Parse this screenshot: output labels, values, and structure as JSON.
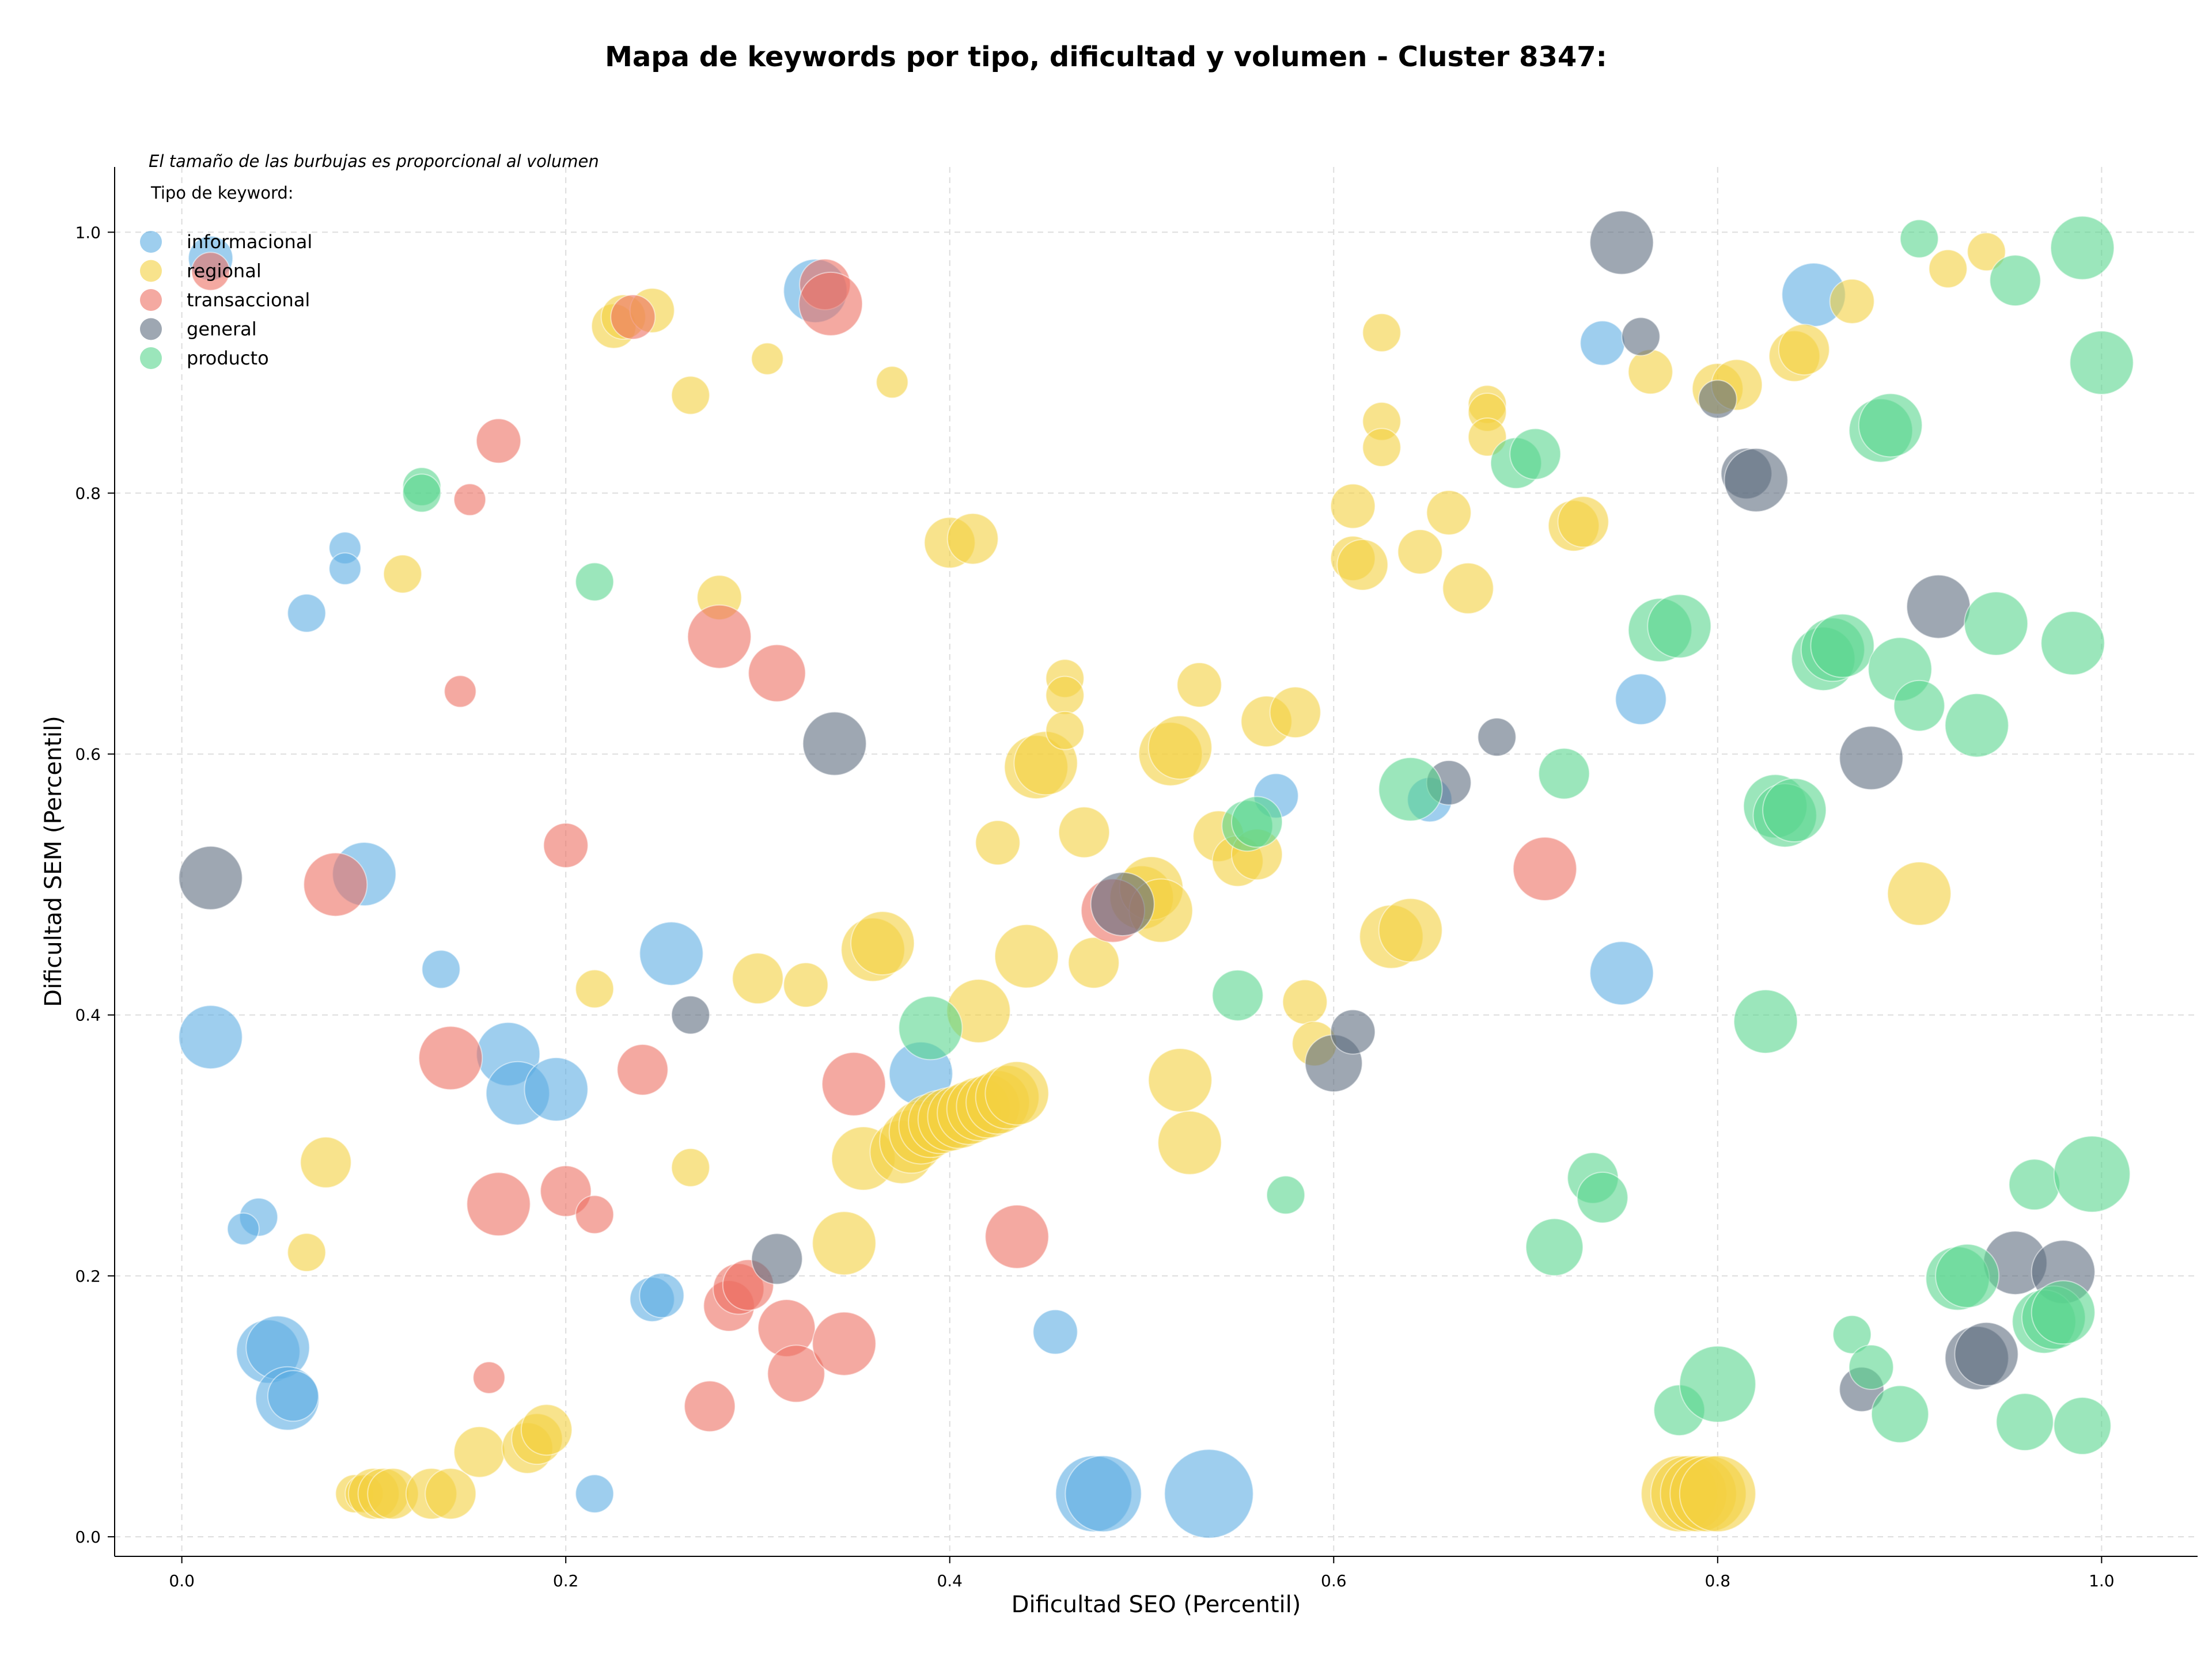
{
  "chart_data": {
    "type": "scatter",
    "title": "Mapa de keywords por tipo, dificultad y volumen - Cluster 8347:",
    "xlabel": "Dificultad SEO (Percentil)",
    "ylabel": "Dificultad SEM (Percentil)",
    "xlim": [
      -0.035,
      1.05
    ],
    "ylim": [
      -0.015,
      1.05
    ],
    "xticks": [
      "0.0",
      "0.2",
      "0.4",
      "0.6",
      "0.8",
      "1.0"
    ],
    "yticks": [
      "0.0",
      "0.2",
      "0.4",
      "0.6",
      "0.8",
      "1.0"
    ],
    "xtick_values": [
      0,
      0.2,
      0.4,
      0.6,
      0.8,
      1.0
    ],
    "ytick_values": [
      0,
      0.2,
      0.4,
      0.6,
      0.8,
      1.0
    ],
    "grid": true,
    "annotation": "El tamaño de las burbujas es proporcional al volumen",
    "legend_title": "Tipo de keyword:",
    "legend_position": "top-left",
    "series": [
      {
        "name": "informacional",
        "color": "#5dade2",
        "points": [
          [
            0.015,
            0.383,
            3
          ],
          [
            0.095,
            0.508,
            3
          ],
          [
            0.135,
            0.435,
            1
          ],
          [
            0.17,
            0.37,
            3
          ],
          [
            0.175,
            0.34,
            3
          ],
          [
            0.195,
            0.343,
            3
          ],
          [
            0.255,
            0.447,
            3
          ],
          [
            0.04,
            0.245,
            1
          ],
          [
            0.032,
            0.236,
            0.5
          ],
          [
            0.045,
            0.142,
            3
          ],
          [
            0.05,
            0.145,
            3
          ],
          [
            0.055,
            0.106,
            3
          ],
          [
            0.058,
            0.108,
            2
          ],
          [
            0.085,
            0.758,
            0.5
          ],
          [
            0.085,
            0.742,
            0.5
          ],
          [
            0.065,
            0.708,
            1
          ],
          [
            0.015,
            0.98,
            1.5
          ],
          [
            0.245,
            0.182,
            1.5
          ],
          [
            0.25,
            0.185,
            1.5
          ],
          [
            0.215,
            0.033,
            1
          ],
          [
            0.33,
            0.955,
            3
          ],
          [
            0.385,
            0.355,
            3
          ],
          [
            0.455,
            0.157,
            1.5
          ],
          [
            0.475,
            0.033,
            4
          ],
          [
            0.48,
            0.033,
            4
          ],
          [
            0.535,
            0.033,
            5
          ],
          [
            0.57,
            0.568,
            1.5
          ],
          [
            0.65,
            0.565,
            1.5
          ],
          [
            0.74,
            0.915,
            1.5
          ],
          [
            0.75,
            0.432,
            3
          ],
          [
            0.76,
            0.642,
            2
          ],
          [
            0.85,
            0.952,
            3
          ]
        ]
      },
      {
        "name": "regional",
        "color": "#f4d03f",
        "points": [
          [
            0.075,
            0.287,
            2
          ],
          [
            0.065,
            0.218,
            1
          ],
          [
            0.115,
            0.738,
            1
          ],
          [
            0.09,
            0.033,
            1
          ],
          [
            0.095,
            0.033,
            1
          ],
          [
            0.1,
            0.033,
            2
          ],
          [
            0.105,
            0.033,
            2
          ],
          [
            0.11,
            0.033,
            2
          ],
          [
            0.13,
            0.033,
            2
          ],
          [
            0.14,
            0.033,
            2
          ],
          [
            0.155,
            0.065,
            2
          ],
          [
            0.18,
            0.068,
            2
          ],
          [
            0.185,
            0.075,
            2
          ],
          [
            0.19,
            0.082,
            2
          ],
          [
            0.215,
            0.42,
            1
          ],
          [
            0.225,
            0.928,
            1.5
          ],
          [
            0.23,
            0.935,
            1.5
          ],
          [
            0.245,
            0.94,
            1.5
          ],
          [
            0.265,
            0.875,
            1
          ],
          [
            0.265,
            0.283,
            1
          ],
          [
            0.28,
            0.72,
            1.5
          ],
          [
            0.3,
            0.428,
            2
          ],
          [
            0.305,
            0.903,
            0.5
          ],
          [
            0.325,
            0.423,
            1.5
          ],
          [
            0.345,
            0.225,
            3
          ],
          [
            0.355,
            0.29,
            3
          ],
          [
            0.36,
            0.45,
            3
          ],
          [
            0.365,
            0.455,
            3
          ],
          [
            0.37,
            0.885,
            0.5
          ],
          [
            0.375,
            0.295,
            3
          ],
          [
            0.38,
            0.303,
            3
          ],
          [
            0.385,
            0.31,
            3
          ],
          [
            0.39,
            0.315,
            3
          ],
          [
            0.395,
            0.318,
            3
          ],
          [
            0.4,
            0.32,
            3
          ],
          [
            0.405,
            0.322,
            3
          ],
          [
            0.41,
            0.325,
            3
          ],
          [
            0.415,
            0.328,
            3
          ],
          [
            0.42,
            0.33,
            3
          ],
          [
            0.425,
            0.333,
            3
          ],
          [
            0.43,
            0.337,
            3
          ],
          [
            0.435,
            0.34,
            3
          ],
          [
            0.4,
            0.762,
            2
          ],
          [
            0.412,
            0.765,
            2
          ],
          [
            0.415,
            0.403,
            3
          ],
          [
            0.425,
            0.532,
            1.5
          ],
          [
            0.44,
            0.445,
            3
          ],
          [
            0.445,
            0.59,
            3
          ],
          [
            0.45,
            0.593,
            3
          ],
          [
            0.46,
            0.658,
            1
          ],
          [
            0.46,
            0.645,
            1
          ],
          [
            0.46,
            0.618,
            1
          ],
          [
            0.47,
            0.54,
            2
          ],
          [
            0.475,
            0.44,
            2
          ],
          [
            0.5,
            0.49,
            3
          ],
          [
            0.505,
            0.497,
            3
          ],
          [
            0.51,
            0.48,
            3
          ],
          [
            0.515,
            0.6,
            3
          ],
          [
            0.52,
            0.605,
            3
          ],
          [
            0.52,
            0.35,
            3
          ],
          [
            0.525,
            0.302,
            3
          ],
          [
            0.53,
            0.653,
            1.5
          ],
          [
            0.54,
            0.537,
            2
          ],
          [
            0.55,
            0.518,
            2
          ],
          [
            0.56,
            0.523,
            2
          ],
          [
            0.565,
            0.625,
            2
          ],
          [
            0.58,
            0.632,
            2
          ],
          [
            0.585,
            0.41,
            1.5
          ],
          [
            0.59,
            0.378,
            1.5
          ],
          [
            0.61,
            0.79,
            1.5
          ],
          [
            0.61,
            0.75,
            1.5
          ],
          [
            0.615,
            0.745,
            2
          ],
          [
            0.625,
            0.923,
            1
          ],
          [
            0.625,
            0.855,
            1
          ],
          [
            0.625,
            0.835,
            1
          ],
          [
            0.63,
            0.46,
            3
          ],
          [
            0.64,
            0.465,
            3
          ],
          [
            0.645,
            0.755,
            1.5
          ],
          [
            0.66,
            0.785,
            1.5
          ],
          [
            0.67,
            0.727,
            2
          ],
          [
            0.68,
            0.868,
            1
          ],
          [
            0.68,
            0.862,
            1
          ],
          [
            0.68,
            0.843,
            1
          ],
          [
            0.725,
            0.775,
            2
          ],
          [
            0.73,
            0.778,
            2
          ],
          [
            0.765,
            0.893,
            1.5
          ],
          [
            0.8,
            0.88,
            2
          ],
          [
            0.81,
            0.883,
            2
          ],
          [
            0.84,
            0.905,
            2
          ],
          [
            0.845,
            0.91,
            2
          ],
          [
            0.87,
            0.947,
            1.5
          ],
          [
            0.78,
            0.033,
            4
          ],
          [
            0.785,
            0.033,
            4
          ],
          [
            0.79,
            0.033,
            4
          ],
          [
            0.795,
            0.033,
            4
          ],
          [
            0.8,
            0.033,
            4
          ],
          [
            0.905,
            0.493,
            3
          ],
          [
            0.92,
            0.972,
            1
          ],
          [
            0.94,
            0.985,
            1
          ]
        ]
      },
      {
        "name": "transaccional",
        "color": "#ec7063",
        "points": [
          [
            0.015,
            0.97,
            1
          ],
          [
            0.08,
            0.5,
            3
          ],
          [
            0.14,
            0.367,
            3
          ],
          [
            0.15,
            0.795,
            0.5
          ],
          [
            0.145,
            0.648,
            0.5
          ],
          [
            0.165,
            0.84,
            1.5
          ],
          [
            0.165,
            0.255,
            3
          ],
          [
            0.16,
            0.122,
            0.5
          ],
          [
            0.2,
            0.53,
            1.5
          ],
          [
            0.2,
            0.265,
            2
          ],
          [
            0.215,
            0.247,
            1
          ],
          [
            0.235,
            0.935,
            1.5
          ],
          [
            0.24,
            0.358,
            2
          ],
          [
            0.275,
            0.1,
            2
          ],
          [
            0.28,
            0.69,
            3
          ],
          [
            0.285,
            0.177,
            2
          ],
          [
            0.29,
            0.19,
            2
          ],
          [
            0.295,
            0.193,
            2
          ],
          [
            0.31,
            0.662,
            2.5
          ],
          [
            0.315,
            0.16,
            2.5
          ],
          [
            0.32,
            0.125,
            2.5
          ],
          [
            0.335,
            0.96,
            2
          ],
          [
            0.338,
            0.945,
            3
          ],
          [
            0.345,
            0.148,
            3
          ],
          [
            0.35,
            0.347,
            3
          ],
          [
            0.435,
            0.23,
            3
          ],
          [
            0.485,
            0.48,
            3
          ],
          [
            0.71,
            0.512,
            3
          ]
        ]
      },
      {
        "name": "general",
        "color": "#5d6d7e",
        "points": [
          [
            0.015,
            0.505,
            3
          ],
          [
            0.265,
            0.4,
            1
          ],
          [
            0.31,
            0.213,
            2
          ],
          [
            0.34,
            0.608,
            3
          ],
          [
            0.49,
            0.485,
            3
          ],
          [
            0.6,
            0.363,
            2.5
          ],
          [
            0.61,
            0.387,
            1.5
          ],
          [
            0.66,
            0.578,
            1.5
          ],
          [
            0.685,
            0.613,
            1
          ],
          [
            0.75,
            0.992,
            3
          ],
          [
            0.76,
            0.92,
            1
          ],
          [
            0.8,
            0.872,
            1
          ],
          [
            0.815,
            0.815,
            2
          ],
          [
            0.82,
            0.81,
            3
          ],
          [
            0.875,
            0.113,
            1.5
          ],
          [
            0.88,
            0.597,
            3
          ],
          [
            0.915,
            0.713,
            3
          ],
          [
            0.935,
            0.137,
            3
          ],
          [
            0.94,
            0.14,
            3
          ],
          [
            0.955,
            0.21,
            3
          ],
          [
            0.98,
            0.203,
            3
          ]
        ]
      },
      {
        "name": "producto",
        "color": "#58d68d",
        "points": [
          [
            0.125,
            0.805,
            1
          ],
          [
            0.125,
            0.8,
            1
          ],
          [
            0.215,
            0.732,
            1
          ],
          [
            0.39,
            0.39,
            3
          ],
          [
            0.55,
            0.415,
            2
          ],
          [
            0.555,
            0.545,
            2
          ],
          [
            0.56,
            0.548,
            2
          ],
          [
            0.575,
            0.262,
            1
          ],
          [
            0.64,
            0.573,
            3
          ],
          [
            0.695,
            0.823,
            2
          ],
          [
            0.705,
            0.83,
            2
          ],
          [
            0.715,
            0.222,
            2.5
          ],
          [
            0.72,
            0.585,
            2
          ],
          [
            0.735,
            0.275,
            2
          ],
          [
            0.74,
            0.26,
            2
          ],
          [
            0.77,
            0.695,
            3
          ],
          [
            0.78,
            0.698,
            3
          ],
          [
            0.78,
            0.097,
            2
          ],
          [
            0.8,
            0.117,
            4
          ],
          [
            0.825,
            0.395,
            3
          ],
          [
            0.83,
            0.56,
            3
          ],
          [
            0.835,
            0.553,
            3
          ],
          [
            0.84,
            0.557,
            3
          ],
          [
            0.855,
            0.673,
            3
          ],
          [
            0.86,
            0.68,
            3
          ],
          [
            0.865,
            0.683,
            3
          ],
          [
            0.87,
            0.155,
            1
          ],
          [
            0.88,
            0.13,
            1.5
          ],
          [
            0.885,
            0.848,
            3
          ],
          [
            0.89,
            0.852,
            3
          ],
          [
            0.895,
            0.094,
            2.5
          ],
          [
            0.895,
            0.665,
            3
          ],
          [
            0.905,
            0.637,
            2
          ],
          [
            0.925,
            0.198,
            3
          ],
          [
            0.93,
            0.2,
            3
          ],
          [
            0.935,
            0.622,
            3
          ],
          [
            0.945,
            0.7,
            3
          ],
          [
            0.955,
            0.963,
            2
          ],
          [
            0.96,
            0.088,
            2.5
          ],
          [
            0.965,
            0.27,
            2
          ],
          [
            0.97,
            0.165,
            3
          ],
          [
            0.975,
            0.168,
            3
          ],
          [
            0.98,
            0.172,
            3
          ],
          [
            0.99,
            0.988,
            3
          ],
          [
            0.985,
            0.685,
            3
          ],
          [
            0.99,
            0.085,
            2.5
          ],
          [
            0.995,
            0.278,
            4
          ],
          [
            1.0,
            0.9,
            3
          ],
          [
            0.905,
            0.995,
            1
          ]
        ]
      }
    ]
  }
}
